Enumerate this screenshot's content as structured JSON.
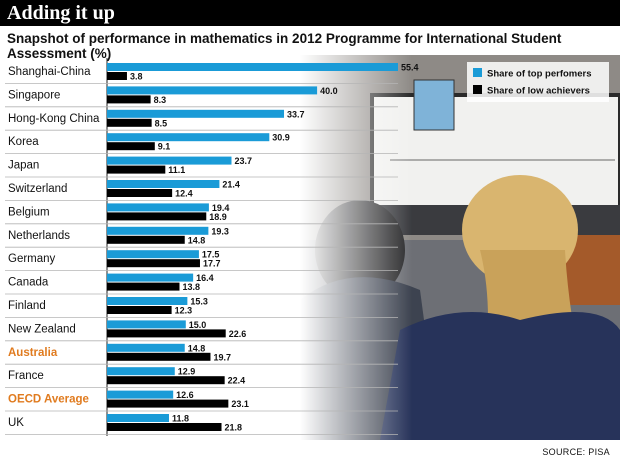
{
  "banner": {
    "label": "Adding it up"
  },
  "source": "SOURCE: PISA",
  "colors": {
    "top_performers": "#1a9bd7",
    "low_achievers": "#000000",
    "highlight_label": "#e07b1f",
    "default_label": "#111111"
  },
  "highlighted_countries": [
    "Australia",
    "OECD Average"
  ],
  "chart_data": {
    "type": "bar",
    "orientation": "horizontal",
    "title": "Snapshot of performance in mathematics in 2012 Programme for International Student Assessment (%)",
    "categories": [
      "Shanghai-China",
      "Singapore",
      "Hong-Kong China",
      "Korea",
      "Japan",
      "Switzerland",
      "Belgium",
      "Netherlands",
      "Germany",
      "Canada",
      "Finland",
      "New Zealand",
      "Australia",
      "France",
      "OECD Average",
      "UK"
    ],
    "series": [
      {
        "name": "Share of top perfomers",
        "color": "#1a9bd7",
        "values": [
          55.4,
          40.0,
          33.7,
          30.9,
          23.7,
          21.4,
          19.4,
          19.3,
          17.5,
          16.4,
          15.3,
          15.0,
          14.8,
          12.9,
          12.6,
          11.8
        ]
      },
      {
        "name": "Share of low achievers",
        "color": "#000000",
        "values": [
          3.8,
          8.3,
          8.5,
          9.1,
          11.1,
          12.4,
          18.9,
          14.8,
          17.7,
          13.8,
          12.3,
          22.6,
          19.7,
          22.4,
          23.1,
          21.8
        ]
      }
    ],
    "data_label_format": "one_decimal",
    "xlim": [
      0,
      60
    ],
    "legend_position": "top-right",
    "grid": false
  }
}
